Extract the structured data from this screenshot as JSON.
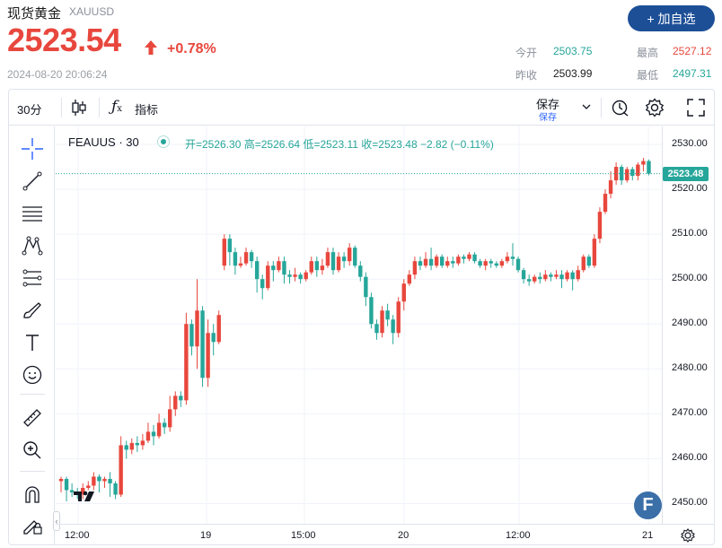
{
  "quote": {
    "name": "现货黄金",
    "code": "XAUUSD",
    "price": "2523.54",
    "change_pct": "+0.78%",
    "timestamp": "2024-08-20 20:06:24",
    "add_label": "+ 加自选",
    "stats": {
      "open_label": "今开",
      "open": "2503.75",
      "prev_label": "昨收",
      "prev": "2503.99",
      "high_label": "最高",
      "high": "2527.12",
      "low_label": "最低",
      "low": "2497.31"
    },
    "colors": {
      "up": "#e8473d",
      "down": "#26a69a",
      "accent": "#1d4f97"
    }
  },
  "toolbar": {
    "interval": "30分",
    "chart_style_icon": "candles-icon",
    "indicator_label": "指标",
    "save_label": "保存",
    "save_sub": "保存",
    "icons": [
      "alert-clock-icon",
      "gear-icon",
      "fullscreen-icon"
    ]
  },
  "drawing_tools": [
    "crosshair-icon",
    "trendline-icon",
    "fib-lines-icon",
    "pattern-icon",
    "projection-icon",
    "brush-icon",
    "text-icon",
    "emoji-icon",
    "ruler-icon",
    "zoom-in-icon",
    "magnet-icon",
    "lock-pencil-icon"
  ],
  "legend": {
    "symbol": "FEAUUS · 30",
    "values": "开=2526.30 高=2526.64 低=2523.11 收=2523.48 −2.82 (−0.11%)"
  },
  "chart_data": {
    "type": "candlestick",
    "symbol": "FEAUUS",
    "interval": "30",
    "y_ticks": [
      "2530.00",
      "2520.00",
      "2510.00",
      "2500.00",
      "2490.00",
      "2480.00",
      "2470.00",
      "2460.00",
      "2450.00"
    ],
    "ylim": [
      2445.5,
      2534
    ],
    "x_ticks": [
      "12:00",
      "19",
      "15:00",
      "20",
      "12:00",
      "21"
    ],
    "last_price": "2523.48",
    "grid": true,
    "up_color": "#e8473d",
    "down_color": "#26a69a",
    "candles": [
      [
        2455,
        2455.5,
        2452.5,
        2456
      ],
      [
        2455.5,
        2453,
        2450.5,
        2456
      ],
      [
        2453,
        2452.5,
        2451.5,
        2454.5
      ],
      [
        2452.5,
        2452,
        2451,
        2453.5
      ],
      [
        2452,
        2453.5,
        2451,
        2454.5
      ],
      [
        2453.5,
        2454,
        2453,
        2455
      ],
      [
        2454,
        2456,
        2453,
        2457
      ],
      [
        2456,
        2455,
        2452.5,
        2456.5
      ],
      [
        2455,
        2455.5,
        2453.5,
        2456
      ],
      [
        2455.5,
        2454.5,
        2451.5,
        2457
      ],
      [
        2454.5,
        2452,
        2451,
        2455
      ],
      [
        2452,
        2463,
        2451.5,
        2465
      ],
      [
        2463,
        2462,
        2460,
        2464
      ],
      [
        2462,
        2463.5,
        2461,
        2464.5
      ],
      [
        2463.5,
        2463,
        2461.5,
        2465
      ],
      [
        2463,
        2464,
        2462,
        2465.5
      ],
      [
        2464,
        2466,
        2463.5,
        2468
      ],
      [
        2466,
        2465,
        2463,
        2467.5
      ],
      [
        2465,
        2468,
        2464.5,
        2470
      ],
      [
        2468,
        2467,
        2465.5,
        2469
      ],
      [
        2467,
        2471,
        2466,
        2474
      ],
      [
        2471,
        2474,
        2469.5,
        2475
      ],
      [
        2474,
        2473,
        2471.5,
        2475
      ],
      [
        2473,
        2490,
        2472,
        2492.5
      ],
      [
        2490,
        2485,
        2483,
        2491
      ],
      [
        2485,
        2493,
        2480,
        2500
      ],
      [
        2493,
        2478,
        2476,
        2494
      ],
      [
        2478,
        2488,
        2476,
        2491
      ],
      [
        2488,
        2486,
        2483,
        2490
      ],
      [
        2486,
        2492,
        2485.5,
        2493
      ],
      [
        2503,
        2509,
        2502,
        2510
      ],
      [
        2509,
        2506,
        2503,
        2510
      ],
      [
        2506,
        2503,
        2501,
        2507
      ],
      [
        2503,
        2503.5,
        2502.5,
        2505
      ],
      [
        2503.5,
        2506,
        2503,
        2507
      ],
      [
        2506,
        2504,
        2502.5,
        2506.5
      ],
      [
        2504,
        2500,
        2497,
        2505
      ],
      [
        2500,
        2498,
        2495.5,
        2501
      ],
      [
        2498,
        2503,
        2497.5,
        2504
      ],
      [
        2503,
        2502,
        2499.5,
        2504
      ],
      [
        2502,
        2504,
        2501.5,
        2505
      ],
      [
        2504,
        2501,
        2499,
        2505
      ],
      [
        2501,
        2500.5,
        2499,
        2502
      ],
      [
        2500.5,
        2501,
        2499.5,
        2502.5
      ],
      [
        2501,
        2500,
        2499,
        2501.5
      ],
      [
        2500,
        2501.5,
        2499.5,
        2502
      ],
      [
        2501.5,
        2504,
        2501,
        2505
      ],
      [
        2504,
        2502,
        2500.5,
        2505
      ],
      [
        2502,
        2503,
        2501,
        2504.5
      ],
      [
        2503,
        2506,
        2502.5,
        2507
      ],
      [
        2506,
        2502,
        2501,
        2507
      ],
      [
        2502,
        2505,
        2501.5,
        2506
      ],
      [
        2505,
        2504,
        2502.5,
        2506
      ],
      [
        2504,
        2507,
        2503,
        2508
      ],
      [
        2507,
        2503,
        2502.5,
        2507.5
      ],
      [
        2503,
        2500.5,
        2499.5,
        2504
      ],
      [
        2500.5,
        2496,
        2494,
        2501.5
      ],
      [
        2496,
        2490,
        2489,
        2497
      ],
      [
        2490,
        2488,
        2486.5,
        2491
      ],
      [
        2488,
        2493,
        2487,
        2494
      ],
      [
        2493,
        2491,
        2489.5,
        2494.5
      ],
      [
        2491,
        2488,
        2485.5,
        2492
      ],
      [
        2488,
        2495,
        2487,
        2496
      ],
      [
        2495,
        2499,
        2493,
        2500
      ],
      [
        2499,
        2501,
        2498.5,
        2502
      ],
      [
        2501,
        2504,
        2500,
        2505
      ],
      [
        2504,
        2503,
        2502,
        2505
      ],
      [
        2503,
        2504.5,
        2502.5,
        2506
      ],
      [
        2504.5,
        2503,
        2502,
        2507
      ],
      [
        2503,
        2505,
        2502.5,
        2505.5
      ],
      [
        2505,
        2503,
        2502.5,
        2505.5
      ],
      [
        2503,
        2504,
        2502.5,
        2505
      ],
      [
        2504,
        2503.5,
        2502.5,
        2505
      ],
      [
        2503.5,
        2505,
        2503,
        2505.5
      ],
      [
        2505,
        2504.5,
        2503.5,
        2505.5
      ],
      [
        2504.5,
        2505.5,
        2504,
        2506
      ],
      [
        2505.5,
        2504,
        2503.5,
        2506
      ],
      [
        2504,
        2503,
        2502.5,
        2504.5
      ],
      [
        2503,
        2504,
        2502,
        2504.5
      ],
      [
        2504,
        2503.5,
        2502.5,
        2504.5
      ],
      [
        2503.5,
        2503,
        2502.5,
        2504
      ],
      [
        2503,
        2504,
        2502.5,
        2504.5
      ],
      [
        2504,
        2505,
        2503.5,
        2506
      ],
      [
        2505,
        2504.5,
        2503,
        2508
      ],
      [
        2504.5,
        2502,
        2501.5,
        2505
      ],
      [
        2502,
        2500,
        2499,
        2502.5
      ],
      [
        2500,
        2499.5,
        2498.5,
        2501
      ],
      [
        2499.5,
        2500.5,
        2499,
        2501
      ],
      [
        2500.5,
        2500,
        2499,
        2501.5
      ],
      [
        2500,
        2501,
        2499.5,
        2502
      ],
      [
        2501,
        2500.5,
        2499.5,
        2501.5
      ],
      [
        2500.5,
        2501,
        2500,
        2502
      ],
      [
        2501,
        2500,
        2498,
        2502
      ],
      [
        2500,
        2501.5,
        2499.5,
        2502
      ],
      [
        2501.5,
        2500,
        2497.5,
        2502
      ],
      [
        2500,
        2502,
        2499.5,
        2503
      ],
      [
        2502,
        2505,
        2501.5,
        2505.5
      ],
      [
        2505,
        2503,
        2502.5,
        2505.5
      ],
      [
        2503,
        2509,
        2502.5,
        2510
      ],
      [
        2509,
        2515,
        2508,
        2516
      ],
      [
        2515,
        2519,
        2514.5,
        2520
      ],
      [
        2519,
        2522,
        2518,
        2524
      ],
      [
        2522,
        2525,
        2521,
        2526
      ],
      [
        2525,
        2522,
        2521,
        2525.5
      ],
      [
        2522,
        2524.5,
        2521.5,
        2525
      ],
      [
        2524.5,
        2523,
        2522,
        2525
      ],
      [
        2523,
        2525.5,
        2522,
        2526
      ],
      [
        2525.5,
        2526.3,
        2524,
        2527
      ],
      [
        2526.3,
        2523.48,
        2523.11,
        2526.64
      ]
    ]
  },
  "badges": {
    "tv_logo": "tradingview-logo-icon",
    "f_logo": "F"
  },
  "xaxis_icon": "settings-icon"
}
